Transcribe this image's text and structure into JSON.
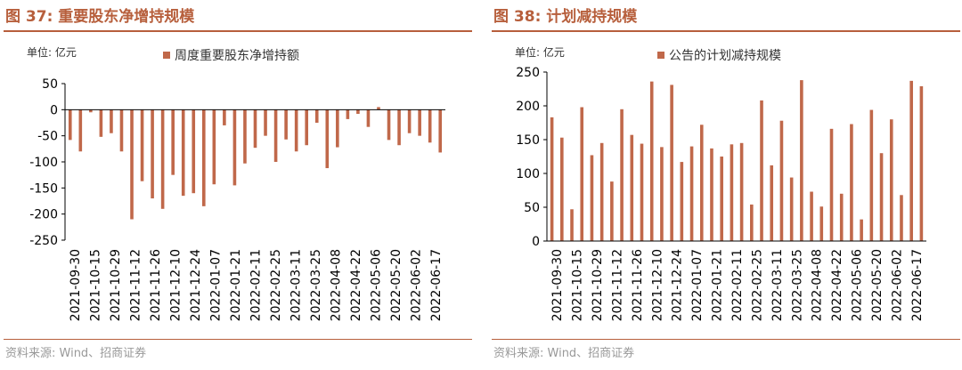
{
  "left": {
    "title": "图 37: 重要股东净增持规模",
    "unit": "单位: 亿元",
    "source": "资料来源: Wind、招商证券"
  },
  "right": {
    "title": "图 38: 计划减持规模",
    "unit": "单位: 亿元",
    "source": "资料来源: Wind、招商证券"
  },
  "chart_data": [
    {
      "type": "bar",
      "title": "图 37: 重要股东净增持规模",
      "ylabel": "单位: 亿元",
      "ylim": [
        -250,
        50
      ],
      "yticks": [
        50,
        0,
        -50,
        -100,
        -150,
        -200,
        -250
      ],
      "xtick_labels": [
        "2021-09-30",
        "2021-10-15",
        "2021-10-29",
        "2021-11-12",
        "2021-11-26",
        "2021-12-10",
        "2021-12-24",
        "2022-01-07",
        "2022-01-21",
        "2022-02-11",
        "2022-02-25",
        "2022-03-11",
        "2022-03-25",
        "2022-04-08",
        "2022-04-22",
        "2022-05-06",
        "2022-05-20",
        "2022-06-02",
        "2022-06-17"
      ],
      "legend_position": "top",
      "color": "#c0684a",
      "series": [
        {
          "name": "周度重要股东净增持额",
          "values": [
            -58,
            -80,
            -5,
            -52,
            -45,
            -80,
            -210,
            -137,
            -170,
            -190,
            -125,
            -165,
            -160,
            -185,
            -143,
            -30,
            -145,
            -103,
            -73,
            -50,
            -100,
            -57,
            -80,
            -68,
            -25,
            -112,
            -72,
            -18,
            -8,
            -33,
            5,
            -58,
            -68,
            -45,
            -50,
            -63,
            -82
          ]
        }
      ]
    },
    {
      "type": "bar",
      "title": "图 38: 计划减持规模",
      "ylabel": "单位: 亿元",
      "ylim": [
        0,
        250
      ],
      "yticks": [
        250,
        200,
        150,
        100,
        50,
        0
      ],
      "xtick_labels": [
        "2021-09-30",
        "2021-10-15",
        "2021-10-29",
        "2021-11-12",
        "2021-11-26",
        "2021-12-10",
        "2021-12-24",
        "2022-01-07",
        "2022-01-21",
        "2022-02-11",
        "2022-02-25",
        "2022-03-11",
        "2022-03-25",
        "2022-04-08",
        "2022-04-22",
        "2022-05-06",
        "2022-05-20",
        "2022-06-02",
        "2022-06-17"
      ],
      "legend_position": "top",
      "color": "#c0684a",
      "series": [
        {
          "name": "公告的计划减持规模",
          "values": [
            183,
            153,
            47,
            198,
            127,
            145,
            88,
            195,
            157,
            144,
            236,
            139,
            231,
            117,
            140,
            172,
            137,
            125,
            143,
            145,
            54,
            208,
            112,
            178,
            94,
            238,
            73,
            51,
            166,
            70,
            173,
            32,
            194,
            130,
            180,
            68,
            237,
            229
          ]
        }
      ]
    }
  ]
}
